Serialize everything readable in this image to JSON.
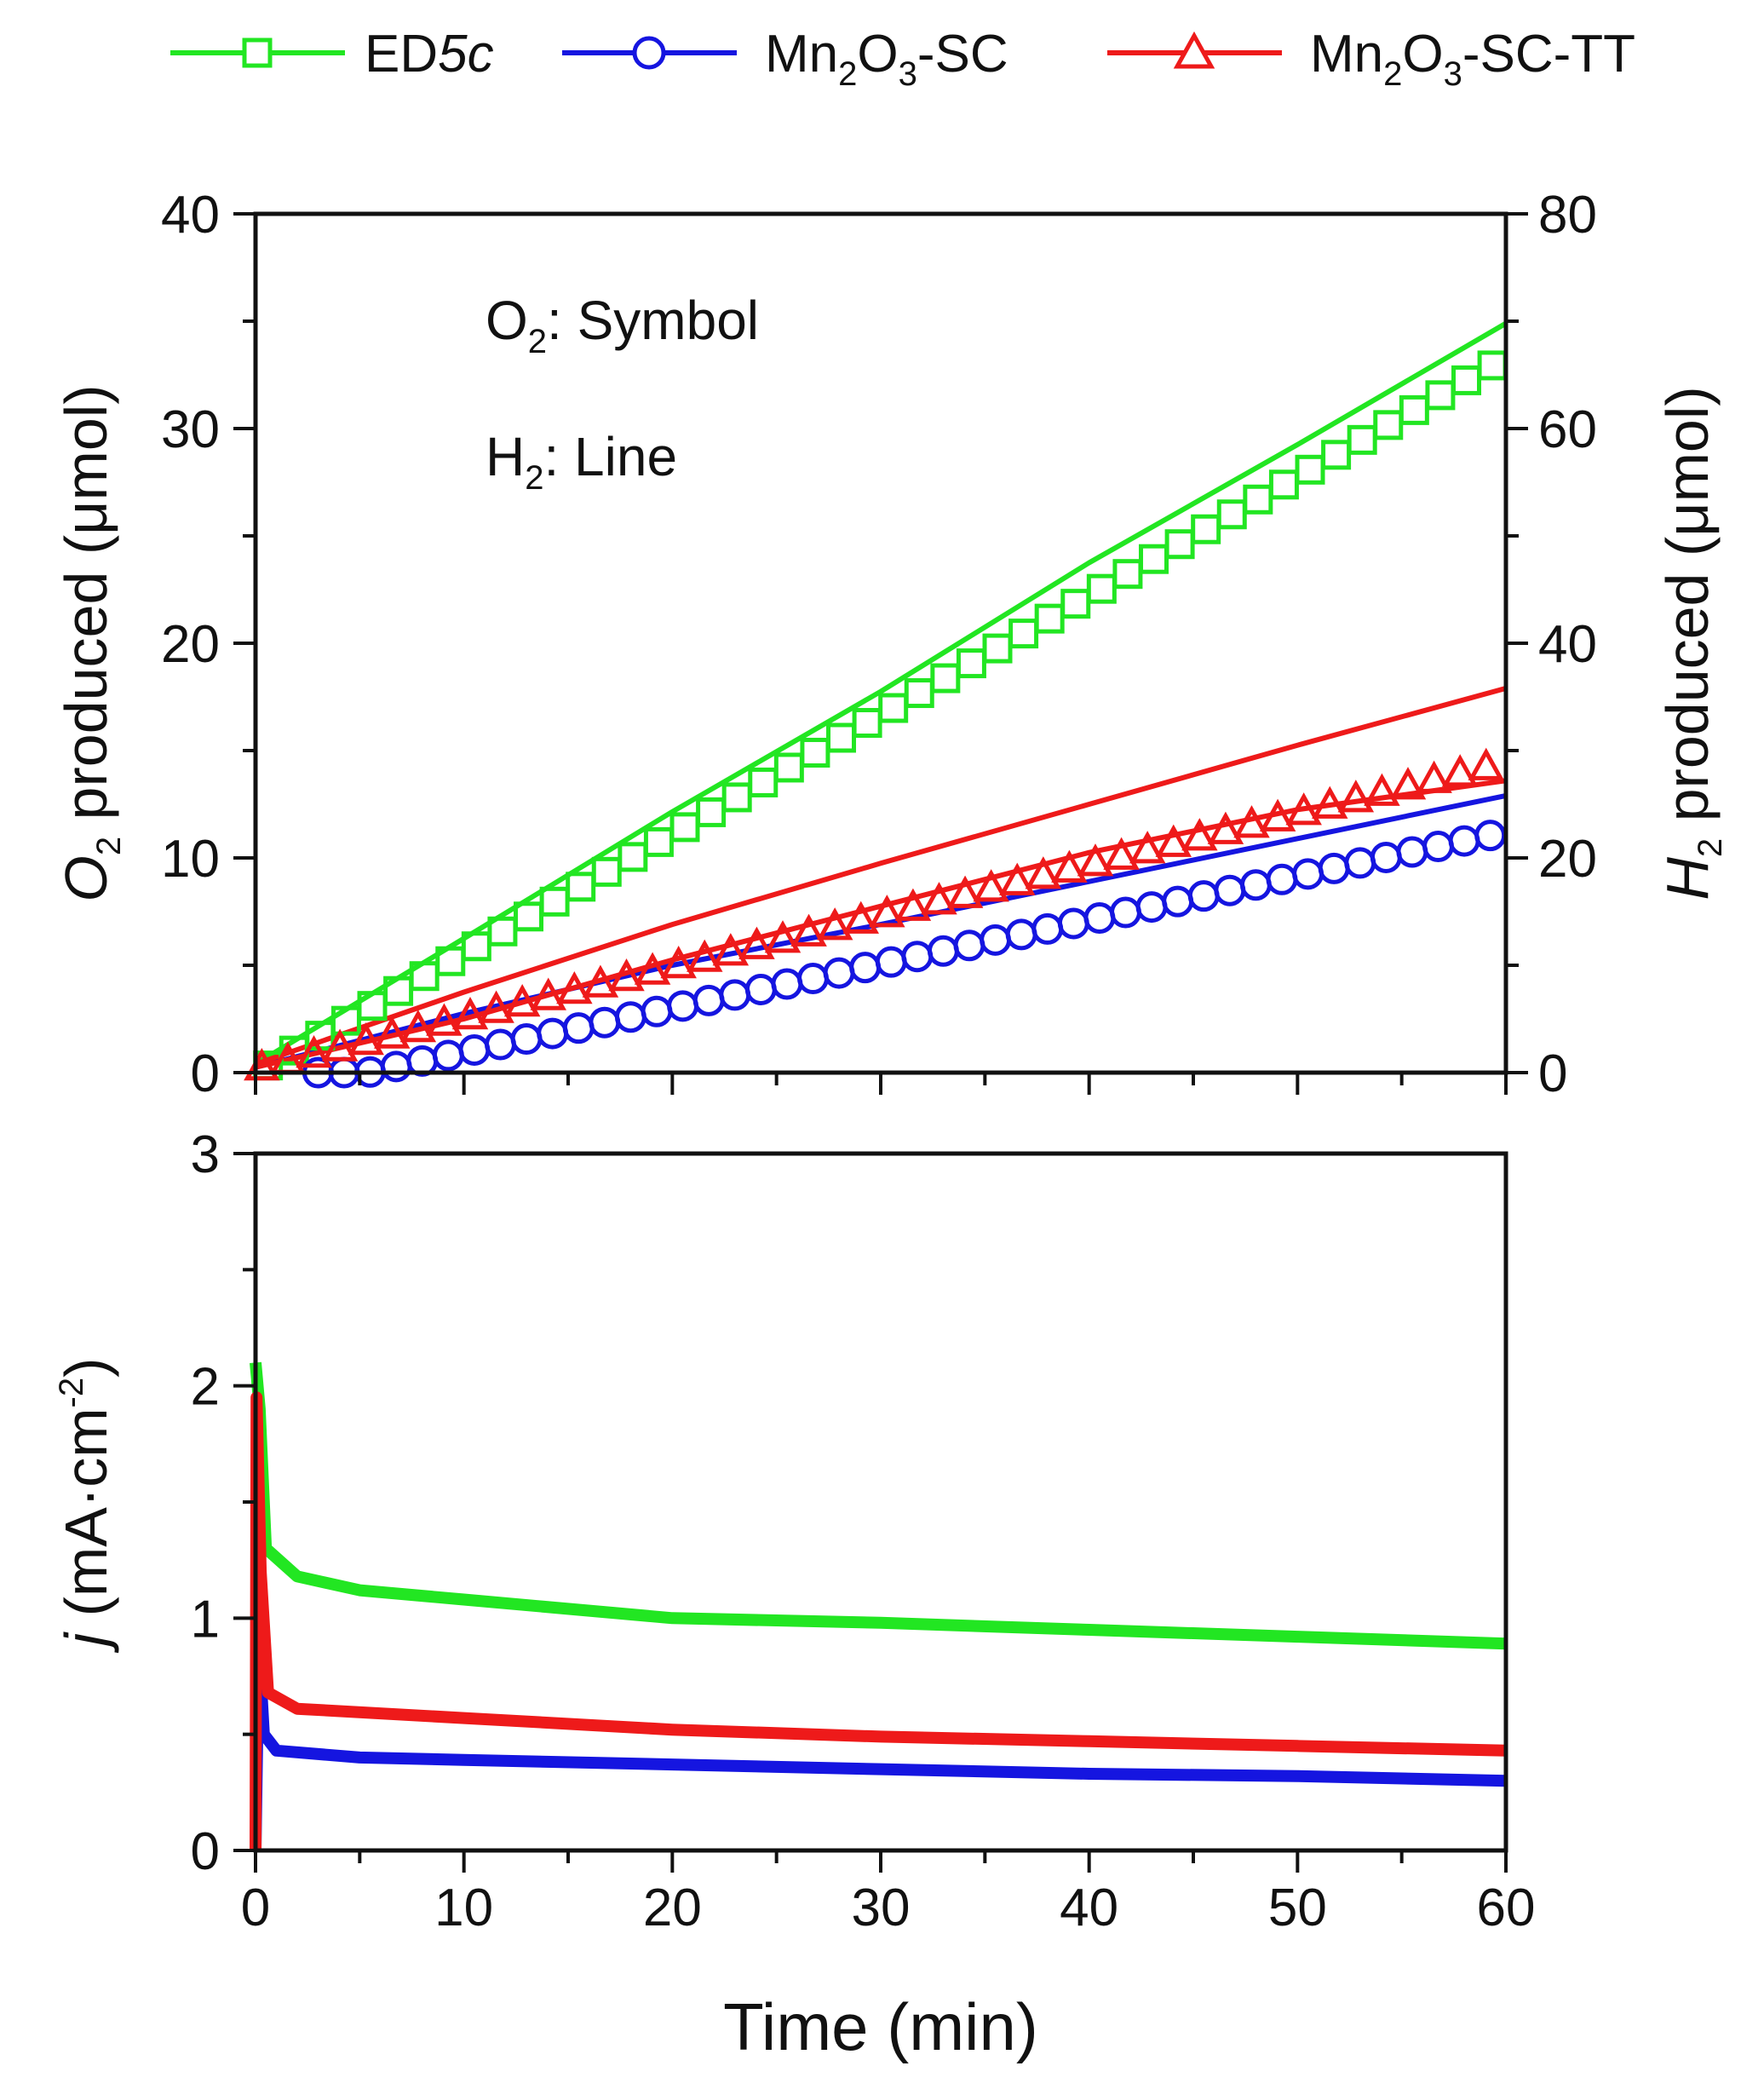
{
  "chart_data": [
    {
      "type": "line",
      "panel": "top",
      "note_lines": [
        {
          "main": "O",
          "sub": "2",
          "rest": ": Symbol"
        },
        {
          "main": "H",
          "sub": "2",
          "rest": ": Line"
        }
      ],
      "ylabel": {
        "main": "O",
        "sub": "2",
        "rest": " produced (μmol)"
      },
      "y2label": {
        "main": "H",
        "sub": "2",
        "rest": " produced (μmol)"
      },
      "ylim": [
        0,
        40
      ],
      "y2lim": [
        0,
        80
      ],
      "yticks": [
        "0",
        "10",
        "20",
        "30",
        "40"
      ],
      "y2ticks": [
        "0",
        "20",
        "40",
        "60",
        "80"
      ],
      "xlim": [
        0,
        60
      ],
      "series_o2_symbols": [
        {
          "name": "ED5c",
          "color": "#22e622",
          "marker": "square",
          "slope": 0.555,
          "offset": 0.0,
          "start": 0.6
        },
        {
          "name": "Mn2O3-SC",
          "color": "#1515e0",
          "marker": "circle",
          "slope": 0.205,
          "offset": -1.1,
          "start": 3.0
        },
        {
          "name": "Mn2O3-SC-TT",
          "color": "#ee1a1a",
          "marker": "triangle",
          "slope": 0.238,
          "offset": 0.2,
          "start": 0.3
        }
      ],
      "series_h2_lines": [
        {
          "name": "ED5c",
          "color": "#22e622",
          "points": [
            [
              0,
              0.8
            ],
            [
              10,
              12.5
            ],
            [
              20,
              24.3
            ],
            [
              30,
              35.5
            ],
            [
              40,
              47.5
            ],
            [
              50,
              58.5
            ],
            [
              60,
              69.8
            ]
          ]
        },
        {
          "name": "Mn2O3-SC",
          "color": "#1515e0",
          "points": [
            [
              0,
              0.5
            ],
            [
              10,
              5.5
            ],
            [
              20,
              10.0
            ],
            [
              30,
              13.8
            ],
            [
              40,
              17.8
            ],
            [
              50,
              21.8
            ],
            [
              60,
              25.8
            ]
          ]
        },
        {
          "name": "Mn2O3-SC-TT",
          "color": "#ee1a1a",
          "points": [
            [
              0,
              0.8
            ],
            [
              10,
              7.5
            ],
            [
              20,
              13.8
            ],
            [
              30,
              19.5
            ],
            [
              40,
              25.0
            ],
            [
              50,
              30.5
            ],
            [
              60,
              35.8
            ]
          ]
        },
        {
          "name": "Mn2O3-SC-TT",
          "color": "#ee1a1a",
          "points": [
            [
              0,
              0.5
            ],
            [
              10,
              5.0
            ],
            [
              20,
              10.5
            ],
            [
              30,
              15.5
            ],
            [
              40,
              20.5
            ],
            [
              50,
              24.5
            ],
            [
              60,
              27.2
            ]
          ]
        }
      ]
    },
    {
      "type": "line",
      "panel": "bottom",
      "ylabel": {
        "italic": "j",
        "rest": " (mA·cm",
        "sup": "-2",
        "close": ")"
      },
      "ylim": [
        0,
        3
      ],
      "yticks": [
        "0",
        "1",
        "2",
        "3"
      ],
      "xlabel": "Time (min)",
      "xlim": [
        0,
        60
      ],
      "xticks": [
        "0",
        "10",
        "20",
        "30",
        "40",
        "50",
        "60"
      ],
      "series": [
        {
          "name": "ED5c",
          "color": "#22e622",
          "points": [
            [
              0,
              2.1
            ],
            [
              0.2,
              1.9
            ],
            [
              0.5,
              1.3
            ],
            [
              2,
              1.18
            ],
            [
              5,
              1.12
            ],
            [
              10,
              1.08
            ],
            [
              20,
              1.0
            ],
            [
              30,
              0.98
            ],
            [
              40,
              0.95
            ],
            [
              50,
              0.92
            ],
            [
              60,
              0.89
            ]
          ]
        },
        {
          "name": "Mn2O3-SC",
          "color": "#1515e0",
          "points": [
            [
              0,
              0.0
            ],
            [
              0.15,
              0.9
            ],
            [
              0.4,
              0.5
            ],
            [
              1,
              0.43
            ],
            [
              5,
              0.4
            ],
            [
              10,
              0.39
            ],
            [
              20,
              0.37
            ],
            [
              30,
              0.35
            ],
            [
              40,
              0.33
            ],
            [
              50,
              0.32
            ],
            [
              60,
              0.3
            ]
          ]
        },
        {
          "name": "Mn2O3-SC-TT",
          "color": "#ee1a1a",
          "points": [
            [
              0,
              0.0
            ],
            [
              0.05,
              1.95
            ],
            [
              0.25,
              1.2
            ],
            [
              0.6,
              0.68
            ],
            [
              2,
              0.61
            ],
            [
              10,
              0.57
            ],
            [
              20,
              0.52
            ],
            [
              30,
              0.49
            ],
            [
              40,
              0.47
            ],
            [
              50,
              0.45
            ],
            [
              60,
              0.43
            ]
          ]
        }
      ]
    }
  ],
  "legend": [
    {
      "parts": [
        {
          "t": "ED"
        },
        {
          "t": "5c",
          "style": "italic"
        }
      ],
      "color": "#22e622",
      "marker": "square"
    },
    {
      "parts": [
        {
          "t": "Mn"
        },
        {
          "t": "2",
          "style": "sub"
        },
        {
          "t": "O"
        },
        {
          "t": "3",
          "style": "sub"
        },
        {
          "t": "-SC"
        }
      ],
      "color": "#1515e0",
      "marker": "circle"
    },
    {
      "parts": [
        {
          "t": "Mn"
        },
        {
          "t": "2",
          "style": "sub"
        },
        {
          "t": "O"
        },
        {
          "t": "3",
          "style": "sub"
        },
        {
          "t": "-SC-TT"
        }
      ],
      "color": "#ee1a1a",
      "marker": "triangle"
    }
  ]
}
